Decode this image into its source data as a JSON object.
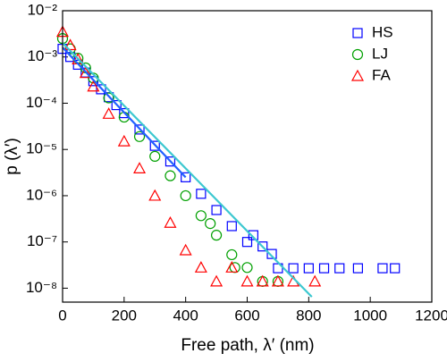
{
  "chart_data": {
    "type": "scatter",
    "ylog": true,
    "xlabel": "Free path, λ′ (nm)",
    "ylabel": "p (λ′)",
    "xlim": [
      0,
      1200
    ],
    "xticks": [
      0,
      200,
      400,
      600,
      800,
      1000,
      1200
    ],
    "ylim": [
      0.01,
      5e-09
    ],
    "yticks": [
      {
        "value": 0.01,
        "label": "10⁻²"
      },
      {
        "value": 0.001,
        "label": "10⁻³"
      },
      {
        "value": 0.0001,
        "label": "10⁻⁴"
      },
      {
        "value": 1e-05,
        "label": "10⁻⁵"
      },
      {
        "value": 1e-06,
        "label": "10⁻⁶"
      },
      {
        "value": 1e-07,
        "label": "10⁻⁷"
      },
      {
        "value": 1e-08,
        "label": "10⁻⁸"
      }
    ],
    "legend": "upper right",
    "series": [
      {
        "name": "HS",
        "color": "#0000ff",
        "marker": "square",
        "x": [
          0,
          25,
          50,
          75,
          100,
          125,
          150,
          175,
          200,
          250,
          300,
          350,
          400,
          450,
          500,
          550,
          600,
          620,
          650,
          680,
          700,
          750,
          800,
          850,
          900,
          960,
          1040,
          1080
        ],
        "values": [
          0.0015,
          0.001,
          0.00068,
          0.00046,
          0.0003,
          0.0002,
          0.000135,
          9.1e-05,
          6.1e-05,
          2.7e-05,
          1.2e-05,
          5.5e-06,
          2.5e-06,
          1.1e-06,
          4.9e-07,
          2.2e-07,
          1e-07,
          1.4e-07,
          8e-08,
          5.5e-08,
          2.7e-08,
          2.7e-08,
          2.7e-08,
          2.7e-08,
          2.7e-08,
          2.7e-08,
          2.7e-08,
          2.7e-08
        ]
      },
      {
        "name": "LJ",
        "color": "#00a000",
        "marker": "circle",
        "x": [
          0,
          25,
          50,
          75,
          100,
          150,
          200,
          250,
          300,
          350,
          400,
          450,
          480,
          500,
          550,
          560,
          600,
          650,
          700
        ],
        "values": [
          0.0025,
          0.0015,
          0.00094,
          0.00058,
          0.00035,
          0.00013,
          5e-05,
          1.9e-05,
          7.1e-06,
          2.7e-06,
          1e-06,
          3.7e-07,
          2.5e-07,
          1.4e-07,
          5.3e-08,
          2.8e-08,
          2.8e-08,
          1.4e-08,
          1.4e-08
        ]
      },
      {
        "name": "FA",
        "color": "#ff0000",
        "marker": "triangle",
        "x": [
          0,
          25,
          50,
          75,
          100,
          150,
          200,
          250,
          300,
          350,
          400,
          450,
          500,
          550,
          600,
          650,
          700,
          750,
          820
        ],
        "values": [
          0.0035,
          0.0018,
          0.00089,
          0.00045,
          0.00023,
          5.9e-05,
          1.5e-05,
          3.9e-06,
          1e-06,
          2.6e-07,
          6.6e-08,
          2.8e-08,
          1.4e-08,
          2.8e-08,
          1.4e-08,
          1.4e-08,
          1.4e-08,
          1.4e-08,
          1.4e-08
        ]
      }
    ],
    "lines": [
      {
        "color": "#3cc8d0",
        "x": [
          0,
          810
        ],
        "values": [
          0.002,
          6.5e-09
        ]
      },
      {
        "color": "#2060ff",
        "x": [
          0,
          400
        ],
        "values": [
          0.0016,
          2.5e-06
        ]
      }
    ]
  }
}
